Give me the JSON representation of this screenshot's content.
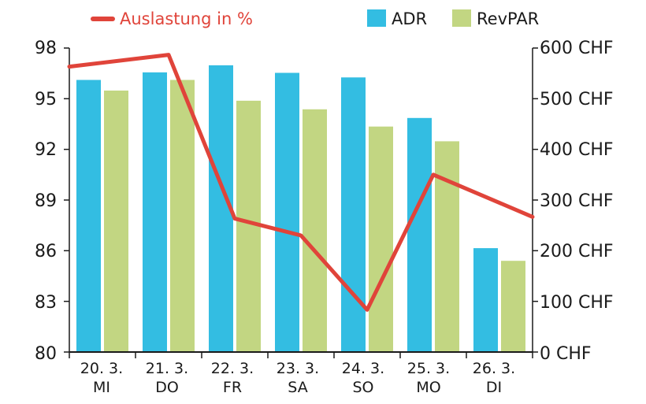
{
  "chart_data": {
    "type": "bar+line",
    "categories": [
      {
        "date": "20. 3.",
        "day": "MI"
      },
      {
        "date": "21. 3.",
        "day": "DO"
      },
      {
        "date": "22. 3.",
        "day": "FR"
      },
      {
        "date": "23. 3.",
        "day": "SA"
      },
      {
        "date": "24. 3.",
        "day": "SO"
      },
      {
        "date": "25. 3.",
        "day": "MO"
      },
      {
        "date": "26. 3.",
        "day": "DI"
      }
    ],
    "series": [
      {
        "name": "ADR",
        "kind": "bar",
        "axis": "right",
        "color": "#33bde2",
        "values": [
          537,
          552,
          566,
          551,
          542,
          462,
          205
        ]
      },
      {
        "name": "RevPAR",
        "kind": "bar",
        "axis": "right",
        "color": "#c2d682",
        "values": [
          516,
          537,
          496,
          479,
          445,
          416,
          180
        ]
      },
      {
        "name": "Auslastung in %",
        "kind": "line",
        "axis": "left",
        "color": "#e0443a",
        "values": [
          96.9,
          97.6,
          87.9,
          86.9,
          82.5,
          90.5,
          88.0
        ]
      }
    ],
    "left_axis": {
      "ticks": [
        "98",
        "95",
        "92",
        "89",
        "86",
        "83",
        "80"
      ],
      "range": [
        80,
        98
      ]
    },
    "right_axis": {
      "ticks": [
        "600 CHF",
        "500 CHF",
        "400 CHF",
        "300 CHF",
        "200 CHF",
        "100 CHF",
        "0 CHF"
      ],
      "range": [
        0,
        600
      ]
    },
    "legend": {
      "line_label": "Auslastung in %",
      "adr_label": "ADR",
      "revpar_label": "RevPAR"
    }
  }
}
